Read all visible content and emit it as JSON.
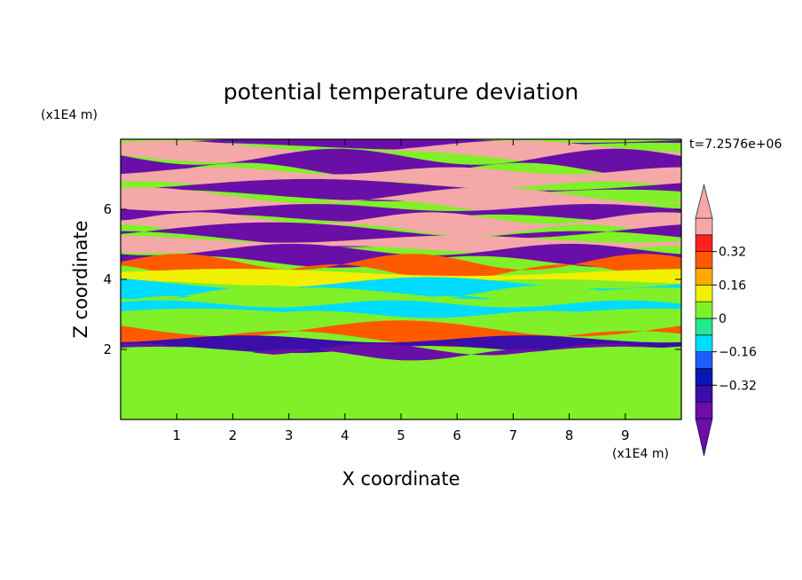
{
  "chart_data": {
    "type": "heatmap",
    "title": "potential temperature deviation",
    "xlabel": "X coordinate",
    "ylabel": "Z coordinate",
    "x_unit": "(x1E4 m)",
    "y_unit": "(x1E4 m)",
    "time_label": "t=7.2576e+06",
    "xlim": [
      0,
      10
    ],
    "ylim": [
      0,
      8
    ],
    "x_ticks": [
      "1",
      "2",
      "3",
      "4",
      "5",
      "6",
      "7",
      "8",
      "9"
    ],
    "y_ticks": [
      "2",
      "4",
      "6"
    ],
    "colorbar": {
      "levels": [
        -0.48,
        -0.4,
        -0.32,
        -0.24,
        -0.16,
        -0.08,
        0,
        0.08,
        0.16,
        0.24,
        0.32,
        0.4,
        0.48
      ],
      "tick_labels": [
        "0.32",
        "0.16",
        "0",
        "−0.16",
        "−0.32"
      ],
      "tick_values": [
        0.32,
        0.16,
        0,
        -0.16,
        -0.32
      ],
      "colors": [
        "#6a0ea8",
        "#3b0ea8",
        "#0a16b4",
        "#1f5cff",
        "#00dcff",
        "#22e890",
        "#80f028",
        "#f0f000",
        "#ffa800",
        "#ff5a00",
        "#ff2020",
        "#f4a8a8"
      ],
      "over_color": "#f4a8a8",
      "under_color": "#6a0ea8"
    },
    "bands": [
      {
        "z": [
          7.8,
          8.0
        ],
        "value": -0.5
      },
      {
        "z": [
          7.5,
          7.8
        ],
        "value": 0.5
      },
      {
        "z": [
          7.1,
          7.5
        ],
        "value": -0.5
      },
      {
        "z": [
          6.7,
          7.1
        ],
        "value": 0.5
      },
      {
        "z": [
          6.4,
          6.7
        ],
        "value": -0.5
      },
      {
        "z": [
          6.05,
          6.4
        ],
        "value": 0.5
      },
      {
        "z": [
          5.75,
          6.05
        ],
        "value": -0.5
      },
      {
        "z": [
          5.4,
          5.75
        ],
        "value": 0.5
      },
      {
        "z": [
          5.15,
          5.4
        ],
        "value": -0.5
      },
      {
        "z": [
          4.85,
          5.15
        ],
        "value": 0.5
      },
      {
        "z": [
          4.5,
          4.85
        ],
        "value": -0.45
      },
      {
        "z": [
          4.2,
          4.5
        ],
        "value": 0.3
      },
      {
        "z": [
          3.9,
          4.2
        ],
        "value": 0.1
      },
      {
        "z": [
          3.6,
          3.9
        ],
        "value": -0.1
      },
      {
        "z": [
          3.3,
          3.6
        ],
        "value": 0.0
      },
      {
        "z": [
          3.0,
          3.3
        ],
        "value": -0.15
      },
      {
        "z": [
          2.6,
          3.0
        ],
        "value": 0.05
      },
      {
        "z": [
          2.3,
          2.6
        ],
        "value": 0.3
      },
      {
        "z": [
          2.0,
          2.3
        ],
        "value": -0.4
      },
      {
        "z": [
          1.85,
          2.0
        ],
        "value": -0.45
      },
      {
        "z": [
          0.0,
          1.85
        ],
        "value": 0.04
      }
    ]
  }
}
